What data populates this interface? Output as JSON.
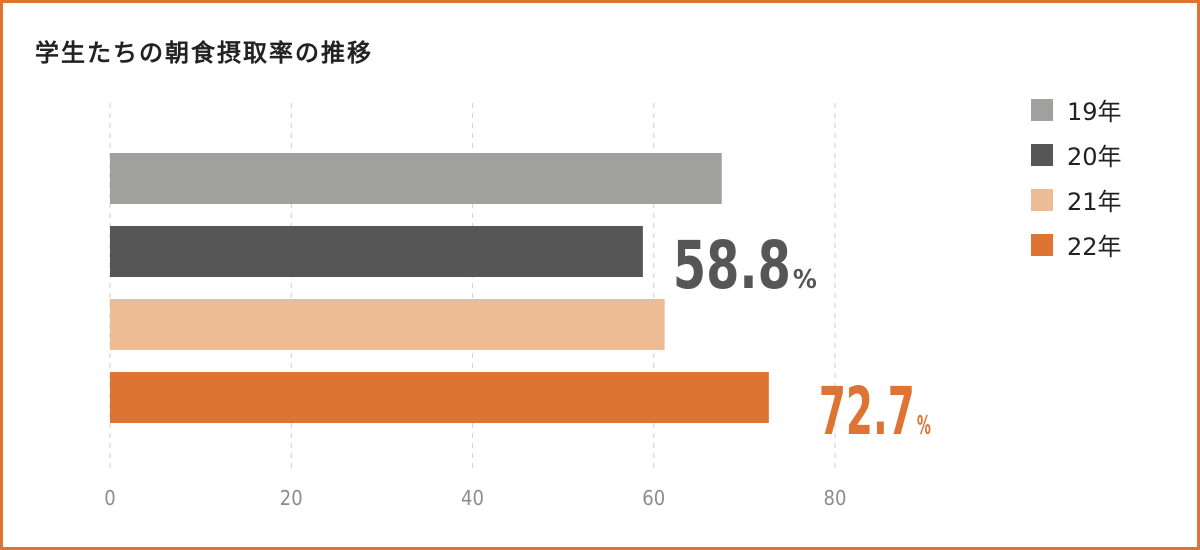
{
  "chart_data": {
    "type": "bar",
    "orientation": "horizontal",
    "title": "学生たちの朝食摂取率の推移",
    "xlabel": "",
    "ylabel": "",
    "xlim": [
      0,
      80
    ],
    "ticks": [
      "0",
      "20",
      "40",
      "60",
      "80"
    ],
    "tick_values": [
      0,
      20,
      40,
      60,
      80
    ],
    "grid": "vertical dashed",
    "legend_position": "top-right",
    "series": [
      {
        "name": "19年",
        "value": 67.5,
        "color": "#a0a09f",
        "label": ""
      },
      {
        "name": "20年",
        "value": 58.8,
        "color": "#575656",
        "label": "58.8",
        "label_unit": "%",
        "label_color": "#575656"
      },
      {
        "name": "21年",
        "value": 61.2,
        "color": "#edbc95",
        "label": ""
      },
      {
        "name": "22年",
        "value": 72.7,
        "color": "#de7434",
        "label": "72.7",
        "label_unit": "%",
        "label_color": "#de7434"
      }
    ]
  }
}
